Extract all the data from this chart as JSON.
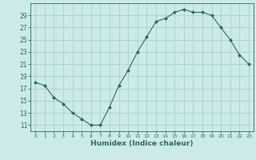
{
  "x": [
    0,
    1,
    2,
    3,
    4,
    5,
    6,
    7,
    8,
    9,
    10,
    11,
    12,
    13,
    14,
    15,
    16,
    17,
    18,
    19,
    20,
    21,
    22,
    23
  ],
  "y": [
    18,
    17.5,
    15.5,
    14.5,
    13,
    12,
    11,
    11,
    14,
    17.5,
    20,
    23,
    25.5,
    28,
    28.5,
    29.5,
    30,
    29.5,
    29.5,
    29,
    27,
    25,
    22.5,
    21
  ],
  "line_color": "#2e6b5e",
  "marker": "D",
  "marker_size": 2,
  "bg_color": "#cceaea",
  "grid_color": "#aacfcf",
  "xlabel": "Humidex (Indice chaleur)",
  "xlabel_color": "#2e6b5e",
  "tick_color": "#2e6b5e",
  "axis_color": "#2e6b5e",
  "ylim": [
    10,
    31
  ],
  "yticks": [
    11,
    13,
    15,
    17,
    19,
    21,
    23,
    25,
    27,
    29
  ],
  "xticks": [
    0,
    1,
    2,
    3,
    4,
    5,
    6,
    7,
    8,
    9,
    10,
    11,
    12,
    13,
    14,
    15,
    16,
    17,
    18,
    19,
    20,
    21,
    22,
    23
  ]
}
